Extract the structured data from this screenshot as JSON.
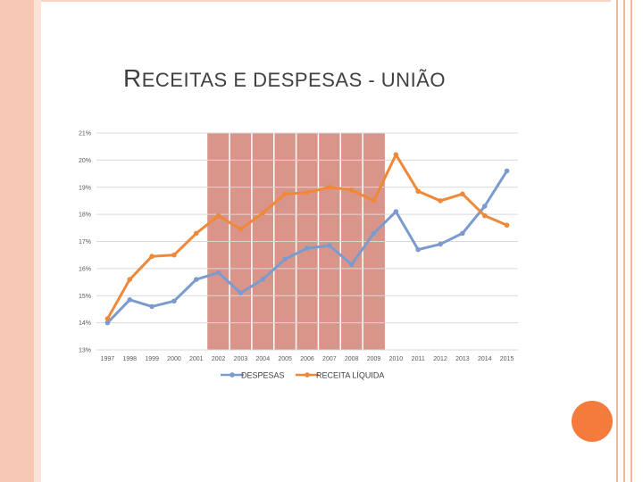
{
  "slide": {
    "title": "Receitas e despesas - União",
    "accent_color": "#f47b3c",
    "frame_color": "#f7c9b5"
  },
  "chart_data": {
    "type": "line",
    "title": "Receitas e despesas - União",
    "categories": [
      "1997",
      "1998",
      "1999",
      "2000",
      "2001",
      "2002",
      "2003",
      "2004",
      "2005",
      "2006",
      "2007",
      "2008",
      "2009",
      "2010",
      "2011",
      "2012",
      "2013",
      "2014",
      "2015"
    ],
    "series": [
      {
        "name": "DESPESAS",
        "color": "#7b9bce",
        "values": [
          14.0,
          14.85,
          14.6,
          14.8,
          15.6,
          15.85,
          15.1,
          15.6,
          16.35,
          16.75,
          16.85,
          16.15,
          17.3,
          18.1,
          16.7,
          16.9,
          17.3,
          18.3,
          19.6
        ]
      },
      {
        "name": "RECEITA LÍQUIDA",
        "color": "#f0883a",
        "values": [
          14.15,
          15.6,
          16.45,
          16.5,
          17.3,
          17.95,
          17.45,
          18.05,
          18.75,
          18.8,
          19.0,
          18.9,
          18.5,
          20.2,
          18.85,
          18.5,
          18.75,
          17.95,
          17.6
        ]
      }
    ],
    "y_ticks": [
      "21%",
      "20%",
      "19%",
      "18%",
      "17%",
      "16%",
      "15%",
      "14%",
      "13%"
    ],
    "ylim": [
      13,
      21
    ],
    "shaded_range": [
      "2002",
      "2009"
    ],
    "shade_color": "#d9958a",
    "grid": true,
    "legend_position": "bottom",
    "xlabel": "",
    "ylabel": ""
  }
}
